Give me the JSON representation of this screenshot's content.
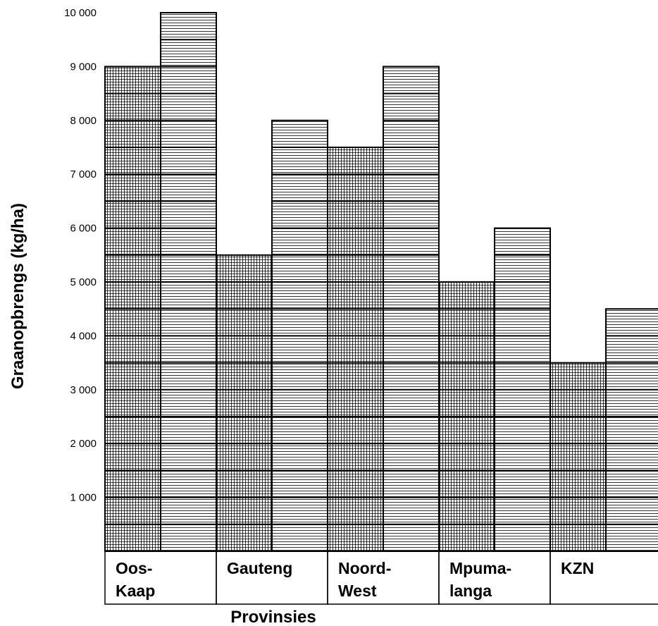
{
  "chart_data": {
    "type": "bar",
    "xlabel": "Provinsies",
    "ylabel": "Graanopbrengs (kg/ha)",
    "ylim": [
      0,
      10000
    ],
    "yticks": [
      "1 000",
      "2 000",
      "3 000",
      "4 000",
      "5 000",
      "6 000",
      "7 000",
      "8 000",
      "9 000",
      "10 000"
    ],
    "categories": [
      {
        "line1": "Oos-",
        "line2": "Kaap"
      },
      {
        "line1": "Gauteng",
        "line2": ""
      },
      {
        "line1": "Noord-",
        "line2": "West"
      },
      {
        "line1": "Mpuma-",
        "line2": "langa"
      },
      {
        "line1": "KZN",
        "line2": ""
      }
    ],
    "series": [
      {
        "values": [
          9000,
          5500,
          7500,
          5000,
          3500
        ],
        "pattern": "grid"
      },
      {
        "values": [
          10000,
          8000,
          9000,
          6000,
          4500
        ],
        "pattern": "horizontal-lines"
      }
    ],
    "grid": true,
    "legend": "none"
  }
}
